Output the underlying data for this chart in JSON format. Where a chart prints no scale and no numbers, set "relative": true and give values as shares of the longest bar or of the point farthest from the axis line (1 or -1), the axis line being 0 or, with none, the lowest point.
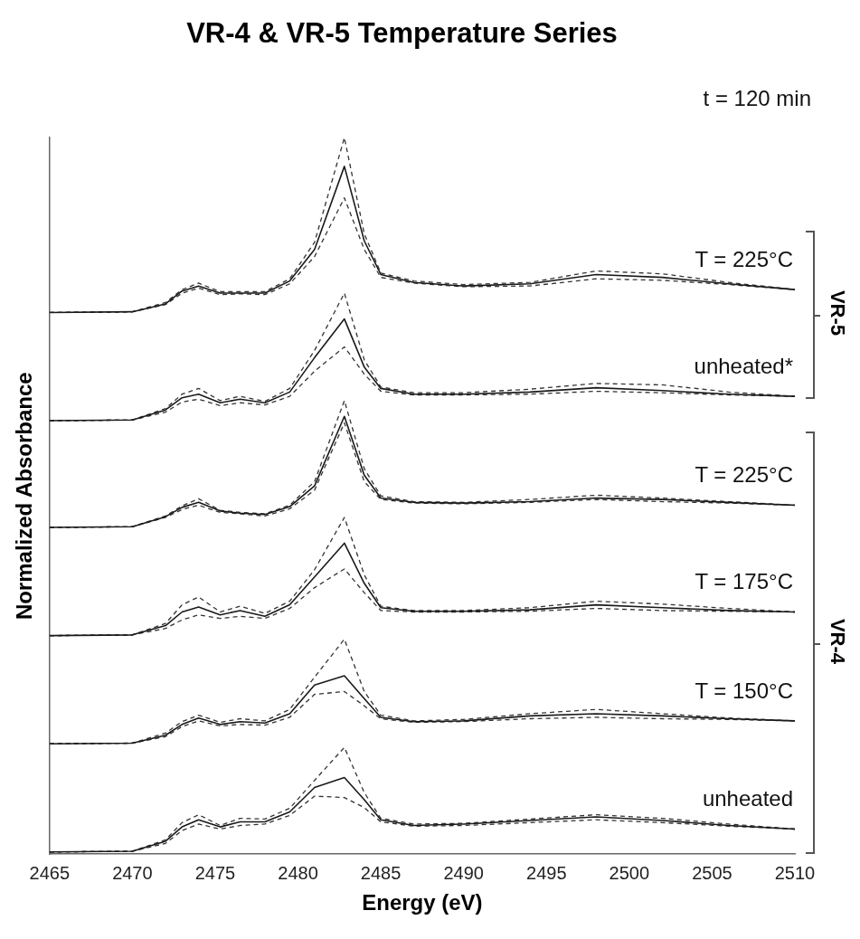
{
  "chart_data": {
    "type": "line",
    "title": "VR-4 & VR-5 Temperature Series",
    "xlabel": "Energy (eV)",
    "ylabel": "Normalized Absorbance",
    "relative": true,
    "tick_labels": "x",
    "xlim": [
      2465,
      2510
    ],
    "xticks": [
      2465,
      2470,
      2475,
      2480,
      2485,
      2490,
      2495,
      2500,
      2505,
      2510
    ],
    "x": [
      2465,
      2470,
      2472,
      2473,
      2474,
      2475.3,
      2476.5,
      2478,
      2479.5,
      2481,
      2482.8,
      2484,
      2485,
      2487,
      2490,
      2494,
      2498,
      2502,
      2506,
      2510
    ],
    "annotations": [
      "t = 120 min",
      "VR-5",
      "VR-4"
    ],
    "series": [
      {
        "name": "T = 225°C",
        "color": "#1a1a1a",
        "line_style": "solid",
        "values": [
          0.756,
          0.757,
          0.768,
          0.786,
          0.793,
          0.783,
          0.783,
          0.783,
          0.8,
          0.844,
          0.96,
          0.856,
          0.809,
          0.798,
          0.793,
          0.796,
          0.809,
          0.805,
          0.796,
          0.788
        ]
      },
      {
        "color": "#333333",
        "line_style": "dashed",
        "values": [
          0.756,
          0.757,
          0.77,
          0.788,
          0.797,
          0.785,
          0.785,
          0.785,
          0.803,
          0.854,
          1,
          0.866,
          0.811,
          0.8,
          0.795,
          0.798,
          0.814,
          0.81,
          0.798,
          0.788
        ]
      },
      {
        "color": "#333333",
        "line_style": "dashed",
        "values": [
          0.756,
          0.757,
          0.767,
          0.783,
          0.79,
          0.781,
          0.782,
          0.781,
          0.796,
          0.834,
          0.916,
          0.844,
          0.805,
          0.797,
          0.792,
          0.793,
          0.803,
          0.801,
          0.795,
          0.788
        ]
      },
      {
        "name": "unheated*",
        "color": "#1a1a1a",
        "line_style": "solid",
        "values": [
          0.605,
          0.606,
          0.62,
          0.637,
          0.642,
          0.63,
          0.635,
          0.63,
          0.645,
          0.693,
          0.747,
          0.68,
          0.65,
          0.642,
          0.642,
          0.645,
          0.651,
          0.647,
          0.642,
          0.639
        ]
      },
      {
        "color": "#333333",
        "line_style": "dashed",
        "values": [
          0.605,
          0.606,
          0.622,
          0.642,
          0.65,
          0.633,
          0.639,
          0.632,
          0.65,
          0.703,
          0.783,
          0.69,
          0.652,
          0.644,
          0.644,
          0.649,
          0.657,
          0.655,
          0.645,
          0.639
        ]
      },
      {
        "color": "#333333",
        "line_style": "dashed",
        "values": [
          0.605,
          0.606,
          0.617,
          0.631,
          0.635,
          0.626,
          0.63,
          0.627,
          0.639,
          0.674,
          0.708,
          0.67,
          0.646,
          0.641,
          0.641,
          0.642,
          0.646,
          0.644,
          0.641,
          0.639
        ]
      },
      {
        "name": "T = 225°C",
        "color": "#1a1a1a",
        "line_style": "solid",
        "values": [
          0.456,
          0.457,
          0.471,
          0.484,
          0.491,
          0.479,
          0.476,
          0.474,
          0.485,
          0.514,
          0.611,
          0.529,
          0.497,
          0.491,
          0.49,
          0.492,
          0.497,
          0.495,
          0.491,
          0.487
        ]
      },
      {
        "color": "#333333",
        "line_style": "dashed",
        "values": [
          0.456,
          0.457,
          0.472,
          0.486,
          0.496,
          0.48,
          0.477,
          0.475,
          0.487,
          0.52,
          0.633,
          0.538,
          0.5,
          0.492,
          0.491,
          0.495,
          0.501,
          0.497,
          0.492,
          0.487
        ]
      },
      {
        "color": "#333333",
        "line_style": "dashed",
        "values": [
          0.456,
          0.457,
          0.47,
          0.481,
          0.487,
          0.477,
          0.475,
          0.472,
          0.482,
          0.508,
          0.602,
          0.52,
          0.495,
          0.49,
          0.489,
          0.491,
          0.495,
          0.492,
          0.49,
          0.487
        ]
      },
      {
        "name": "T = 175°C",
        "color": "#1a1a1a",
        "line_style": "solid",
        "values": [
          0.305,
          0.306,
          0.319,
          0.338,
          0.345,
          0.334,
          0.34,
          0.332,
          0.348,
          0.387,
          0.434,
          0.378,
          0.344,
          0.339,
          0.339,
          0.341,
          0.348,
          0.344,
          0.34,
          0.338
        ]
      },
      {
        "color": "#333333",
        "line_style": "dashed",
        "values": [
          0.305,
          0.306,
          0.322,
          0.348,
          0.359,
          0.338,
          0.346,
          0.336,
          0.353,
          0.397,
          0.47,
          0.39,
          0.346,
          0.34,
          0.34,
          0.344,
          0.353,
          0.349,
          0.343,
          0.338
        ]
      },
      {
        "color": "#333333",
        "line_style": "dashed",
        "values": [
          0.305,
          0.306,
          0.315,
          0.327,
          0.334,
          0.329,
          0.332,
          0.329,
          0.343,
          0.372,
          0.398,
          0.365,
          0.34,
          0.338,
          0.338,
          0.339,
          0.343,
          0.34,
          0.339,
          0.338
        ]
      },
      {
        "name": "T = 150°C",
        "color": "#1a1a1a",
        "line_style": "solid",
        "values": [
          0.154,
          0.155,
          0.166,
          0.181,
          0.19,
          0.181,
          0.185,
          0.183,
          0.196,
          0.236,
          0.249,
          0.217,
          0.191,
          0.185,
          0.186,
          0.193,
          0.196,
          0.193,
          0.189,
          0.186
        ]
      },
      {
        "color": "#333333",
        "line_style": "dashed",
        "values": [
          0.154,
          0.155,
          0.169,
          0.185,
          0.194,
          0.184,
          0.189,
          0.186,
          0.202,
          0.247,
          0.3,
          0.227,
          0.194,
          0.186,
          0.188,
          0.196,
          0.202,
          0.196,
          0.19,
          0.186
        ]
      },
      {
        "color": "#333333",
        "line_style": "dashed",
        "values": [
          0.154,
          0.155,
          0.164,
          0.178,
          0.186,
          0.179,
          0.181,
          0.18,
          0.191,
          0.223,
          0.227,
          0.207,
          0.189,
          0.184,
          0.185,
          0.189,
          0.191,
          0.189,
          0.188,
          0.186
        ]
      },
      {
        "name": "unheated",
        "color": "#1a1a1a",
        "line_style": "solid",
        "values": [
          0.003,
          0.004,
          0.018,
          0.038,
          0.048,
          0.038,
          0.045,
          0.045,
          0.059,
          0.093,
          0.107,
          0.076,
          0.048,
          0.04,
          0.042,
          0.047,
          0.052,
          0.047,
          0.04,
          0.035
        ]
      },
      {
        "color": "#333333",
        "line_style": "dashed",
        "values": [
          0.003,
          0.004,
          0.02,
          0.044,
          0.055,
          0.04,
          0.05,
          0.049,
          0.064,
          0.103,
          0.149,
          0.086,
          0.05,
          0.042,
          0.043,
          0.049,
          0.055,
          0.05,
          0.042,
          0.035
        ]
      },
      {
        "color": "#333333",
        "line_style": "dashed",
        "values": [
          0.003,
          0.004,
          0.015,
          0.033,
          0.042,
          0.035,
          0.04,
          0.042,
          0.054,
          0.081,
          0.079,
          0.065,
          0.045,
          0.039,
          0.04,
          0.044,
          0.048,
          0.044,
          0.039,
          0.035
        ]
      }
    ]
  }
}
